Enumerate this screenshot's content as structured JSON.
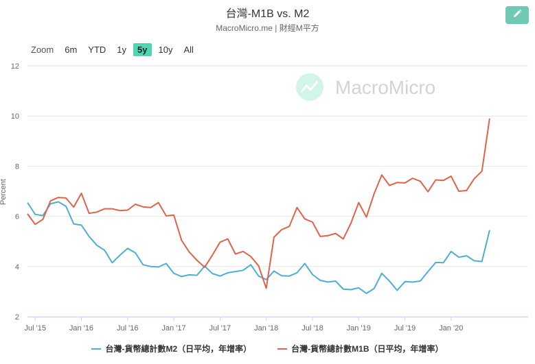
{
  "header": {
    "title": "台灣-M1B vs. M2",
    "subtitle": "MacroMicro.me | 財經M平方"
  },
  "toolbar": {
    "edit_icon": "pencil-icon",
    "zoom_label": "Zoom",
    "ranges": [
      "6m",
      "YTD",
      "1y",
      "5y",
      "10y",
      "All"
    ],
    "active_range": "5y"
  },
  "watermark": {
    "text": "MacroMicro",
    "icon": "chart-logo-icon"
  },
  "colors": {
    "m2": "#4bafd1",
    "m1b": "#e0624a",
    "accent": "#4dd6b4"
  },
  "chart_data": {
    "type": "line",
    "title": "台灣-M1B vs. M2",
    "ylabel": "Percent",
    "xlabel": "",
    "ylim": [
      2,
      12
    ],
    "yticks": [
      2,
      4,
      6,
      8,
      10,
      12
    ],
    "xlim": [
      "2015-06",
      "2020-11"
    ],
    "xticks": [
      {
        "label": "Jul '15",
        "x": "2015-07"
      },
      {
        "label": "Jan '16",
        "x": "2016-01"
      },
      {
        "label": "Jul '16",
        "x": "2016-07"
      },
      {
        "label": "Jan '17",
        "x": "2017-01"
      },
      {
        "label": "Jul '17",
        "x": "2017-07"
      },
      {
        "label": "Jan '18",
        "x": "2018-01"
      },
      {
        "label": "Jul '18",
        "x": "2018-07"
      },
      {
        "label": "Jan '19",
        "x": "2019-01"
      },
      {
        "label": "Jul '19",
        "x": "2019-07"
      },
      {
        "label": "Jan '20",
        "x": "2020-01"
      }
    ],
    "grid": true,
    "legend": "bottom",
    "series": [
      {
        "name": "台灣-貨幣總計數M2（日平均，年增率）",
        "color": "#4bafd1",
        "values": [
          6.55,
          6.08,
          6.03,
          6.5,
          6.58,
          6.4,
          5.7,
          5.65,
          5.2,
          4.85,
          4.65,
          4.15,
          4.45,
          4.72,
          4.55,
          4.07,
          4.0,
          3.98,
          4.12,
          3.73,
          3.6,
          3.67,
          3.65,
          4.02,
          3.72,
          3.62,
          3.75,
          3.8,
          3.85,
          4.07,
          3.62,
          3.48,
          3.82,
          3.63,
          3.62,
          3.75,
          4.12,
          3.68,
          3.45,
          3.38,
          3.42,
          3.1,
          3.08,
          3.15,
          2.93,
          3.12,
          3.73,
          3.42,
          3.05,
          3.4,
          3.38,
          3.42,
          3.8,
          4.16,
          4.15,
          4.6,
          4.37,
          4.43,
          4.23,
          4.2,
          5.45
        ]
      },
      {
        "name": "台灣-貨幣總計數M1B（日平均，年增率）",
        "color": "#e0624a",
        "values": [
          6.1,
          5.68,
          5.88,
          6.62,
          6.75,
          6.73,
          6.37,
          6.92,
          6.12,
          6.17,
          6.3,
          6.3,
          6.23,
          6.25,
          6.48,
          6.38,
          6.35,
          6.55,
          6.02,
          6.05,
          5.05,
          4.58,
          4.25,
          3.97,
          4.45,
          4.97,
          5.1,
          4.5,
          4.6,
          4.4,
          4.03,
          3.13,
          5.17,
          5.47,
          5.6,
          6.35,
          5.9,
          5.77,
          5.2,
          5.23,
          5.32,
          5.1,
          5.73,
          6.55,
          5.97,
          6.9,
          7.65,
          7.23,
          7.35,
          7.33,
          7.52,
          7.4,
          6.98,
          7.45,
          7.43,
          7.6,
          7.0,
          7.03,
          7.5,
          7.8,
          9.9
        ]
      }
    ]
  }
}
